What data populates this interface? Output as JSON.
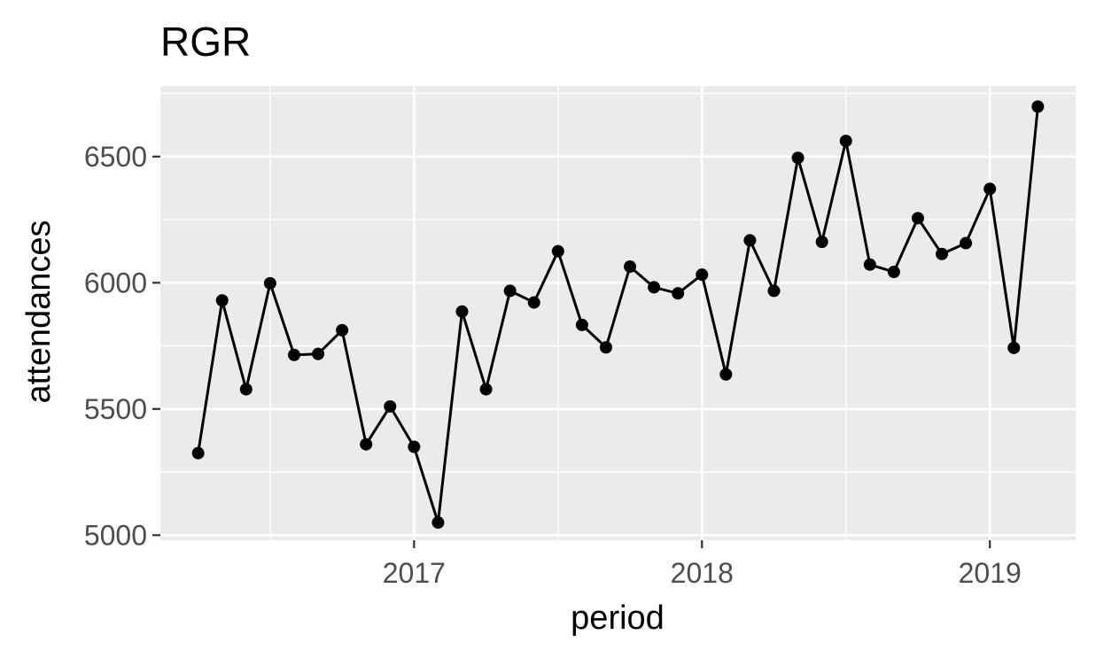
{
  "chart_data": {
    "type": "line",
    "title": "RGR",
    "xlabel": "period",
    "ylabel": "attendances",
    "x_tick_labels": [
      "2017",
      "2018",
      "2019"
    ],
    "y_tick_labels": [
      "5000",
      "5500",
      "6000",
      "6500"
    ],
    "ylim": [
      4980,
      6780
    ],
    "grid": true,
    "background": "#EBEBEB",
    "gridline_color": "#FFFFFF",
    "line_color": "#000000",
    "point_color": "#000000",
    "series": [
      {
        "x": [
          "2016-04",
          "2016-05",
          "2016-06",
          "2016-07",
          "2016-08",
          "2016-09",
          "2016-10",
          "2016-11",
          "2016-12",
          "2017-01",
          "2017-02",
          "2017-03",
          "2017-04",
          "2017-05",
          "2017-06",
          "2017-07",
          "2017-08",
          "2017-09",
          "2017-10",
          "2017-11",
          "2017-12",
          "2018-01",
          "2018-02",
          "2018-03",
          "2018-04",
          "2018-05",
          "2018-06",
          "2018-07",
          "2018-08",
          "2018-09",
          "2018-10",
          "2018-11",
          "2018-12",
          "2019-01",
          "2019-02",
          "2019-03"
        ],
        "values": [
          5325,
          5930,
          5578,
          5998,
          5714,
          5718,
          5812,
          5360,
          5510,
          5350,
          5050,
          5886,
          5578,
          5968,
          5922,
          6125,
          5833,
          5744,
          6064,
          5982,
          5958,
          6032,
          5637,
          6168,
          5968,
          6495,
          6162,
          6562,
          6072,
          6043,
          6256,
          6114,
          6157,
          6372,
          5742,
          6698
        ]
      }
    ]
  }
}
